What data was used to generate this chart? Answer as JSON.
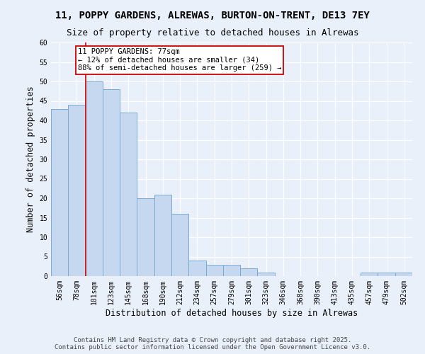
{
  "title1": "11, POPPY GARDENS, ALREWAS, BURTON-ON-TRENT, DE13 7EY",
  "title2": "Size of property relative to detached houses in Alrewas",
  "xlabel": "Distribution of detached houses by size in Alrewas",
  "ylabel": "Number of detached properties",
  "categories": [
    "56sqm",
    "78sqm",
    "101sqm",
    "123sqm",
    "145sqm",
    "168sqm",
    "190sqm",
    "212sqm",
    "234sqm",
    "257sqm",
    "279sqm",
    "301sqm",
    "323sqm",
    "346sqm",
    "368sqm",
    "390sqm",
    "413sqm",
    "435sqm",
    "457sqm",
    "479sqm",
    "502sqm"
  ],
  "values": [
    43,
    44,
    50,
    48,
    42,
    20,
    21,
    16,
    4,
    3,
    3,
    2,
    1,
    0,
    0,
    0,
    0,
    0,
    1,
    1,
    1
  ],
  "bar_color": "#c5d8f0",
  "bar_edge_color": "#7aaad4",
  "vline_idx": 1,
  "vline_color": "#cc0000",
  "annotation_text": "11 POPPY GARDENS: 77sqm\n← 12% of detached houses are smaller (34)\n88% of semi-detached houses are larger (259) →",
  "annotation_box_color": "#ffffff",
  "annotation_box_edge": "#cc0000",
  "ylim": [
    0,
    60
  ],
  "yticks": [
    0,
    5,
    10,
    15,
    20,
    25,
    30,
    35,
    40,
    45,
    50,
    55,
    60
  ],
  "footer": "Contains HM Land Registry data © Crown copyright and database right 2025.\nContains public sector information licensed under the Open Government Licence v3.0.",
  "bg_color": "#eaf0fa",
  "plot_bg_color": "#eaf0fa",
  "grid_color": "#ffffff",
  "title1_fontsize": 10,
  "title2_fontsize": 9,
  "tick_fontsize": 7,
  "label_fontsize": 8.5,
  "annot_fontsize": 7.5,
  "footer_fontsize": 6.5
}
